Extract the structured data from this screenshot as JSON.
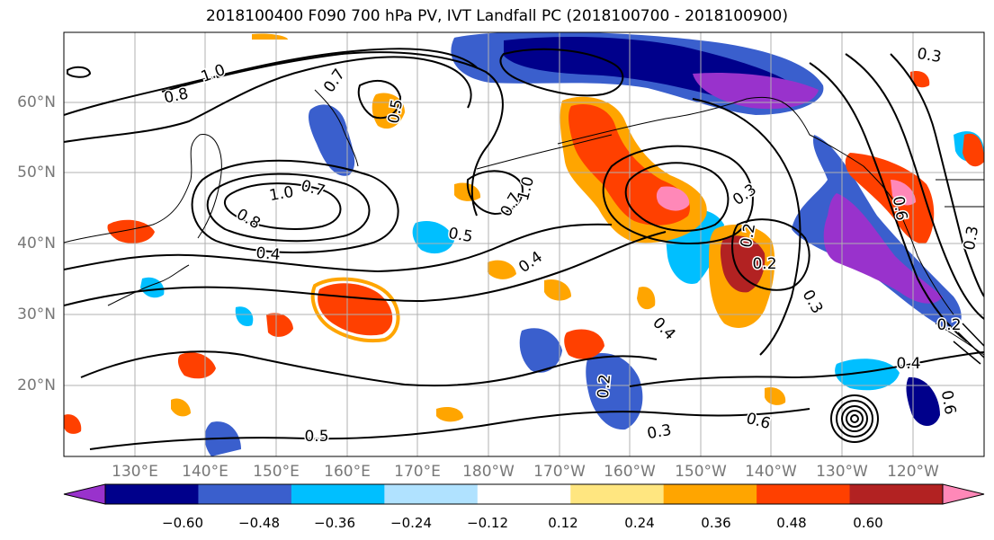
{
  "title": "2018100400 F090 700 hPa PV, IVT Landfall PC (2018100700 - 2018100900)",
  "latitude_labels": [
    "60°N",
    "50°N",
    "40°N",
    "30°N",
    "20°N"
  ],
  "longitude_labels": [
    "130°E",
    "140°E",
    "150°E",
    "160°E",
    "170°E",
    "180°W",
    "170°W",
    "160°W",
    "150°W",
    "140°W",
    "130°W",
    "120°W"
  ],
  "colorbar": {
    "tick_labels": [
      "−0.60",
      "−0.48",
      "−0.36",
      "−0.24",
      "−0.12",
      "0.12",
      "0.24",
      "0.36",
      "0.48",
      "0.60"
    ],
    "colors": [
      "#9932CC",
      "#00008B",
      "#3A5FCD",
      "#00BFFF",
      "#B0E2FF",
      "#FFFFFF",
      "#FFE680",
      "#FFA500",
      "#FF4000",
      "#B22222",
      "#FF88B8"
    ]
  },
  "contour_labels": [
    "1.0",
    "0.8",
    "0.7",
    "0.5",
    "1.0",
    "0.7",
    "0.8",
    "0.4",
    "0.5",
    "0.7",
    "1.0",
    "0.4",
    "0.4",
    "0.2",
    "0.3",
    "0.5",
    "0.6",
    "0.4",
    "0.3",
    "0.2",
    "0.2",
    "0.3",
    "0.2",
    "0.6",
    "0.3",
    "0.6",
    "0.3"
  ]
}
